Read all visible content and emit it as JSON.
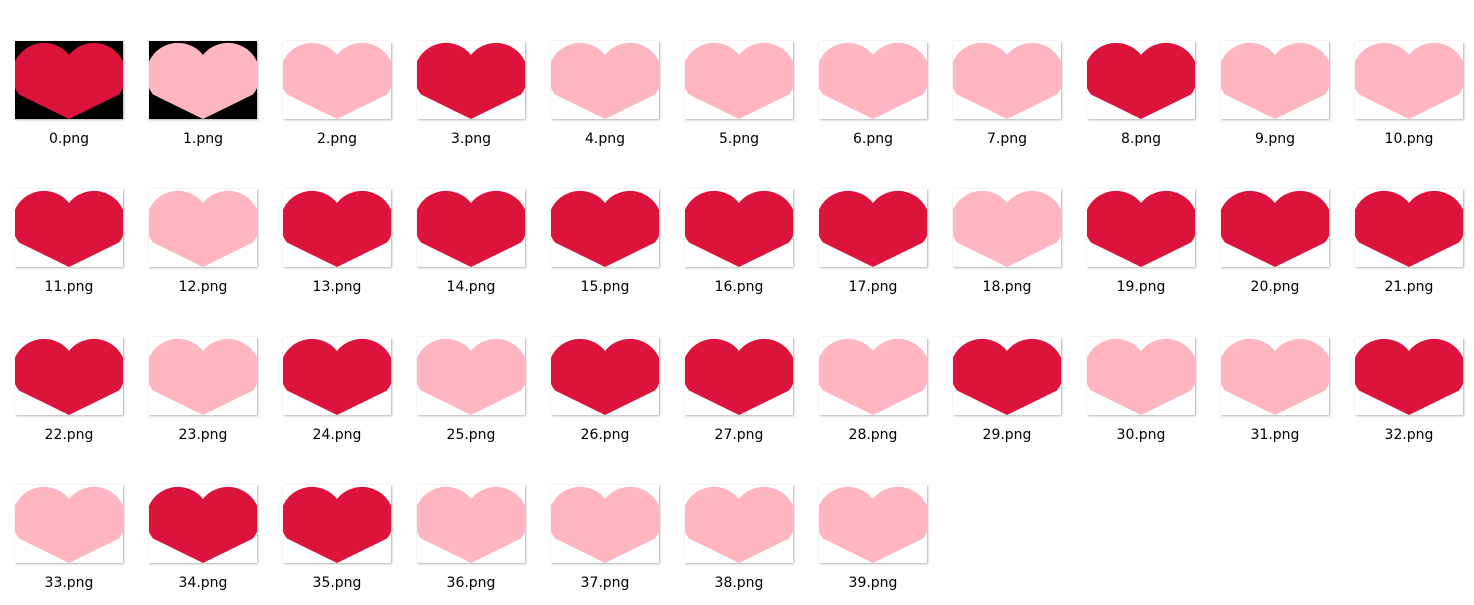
{
  "colors": {
    "dark_heart": "#DC143C",
    "light_heart": "#FFB6C1",
    "black_bg": "#000000",
    "white_bg": "#FFFFFF"
  },
  "files": [
    {
      "name": "0.png",
      "heart": "dark",
      "bg": "black"
    },
    {
      "name": "1.png",
      "heart": "light",
      "bg": "black"
    },
    {
      "name": "2.png",
      "heart": "light",
      "bg": "white"
    },
    {
      "name": "3.png",
      "heart": "dark",
      "bg": "white"
    },
    {
      "name": "4.png",
      "heart": "light",
      "bg": "white"
    },
    {
      "name": "5.png",
      "heart": "light",
      "bg": "white"
    },
    {
      "name": "6.png",
      "heart": "light",
      "bg": "white"
    },
    {
      "name": "7.png",
      "heart": "light",
      "bg": "white"
    },
    {
      "name": "8.png",
      "heart": "dark",
      "bg": "white"
    },
    {
      "name": "9.png",
      "heart": "light",
      "bg": "white"
    },
    {
      "name": "10.png",
      "heart": "light",
      "bg": "white"
    },
    {
      "name": "11.png",
      "heart": "dark",
      "bg": "white"
    },
    {
      "name": "12.png",
      "heart": "light",
      "bg": "white"
    },
    {
      "name": "13.png",
      "heart": "dark",
      "bg": "white"
    },
    {
      "name": "14.png",
      "heart": "dark",
      "bg": "white"
    },
    {
      "name": "15.png",
      "heart": "dark",
      "bg": "white"
    },
    {
      "name": "16.png",
      "heart": "dark",
      "bg": "white"
    },
    {
      "name": "17.png",
      "heart": "dark",
      "bg": "white"
    },
    {
      "name": "18.png",
      "heart": "light",
      "bg": "white"
    },
    {
      "name": "19.png",
      "heart": "dark",
      "bg": "white"
    },
    {
      "name": "20.png",
      "heart": "dark",
      "bg": "white"
    },
    {
      "name": "21.png",
      "heart": "dark",
      "bg": "white"
    },
    {
      "name": "22.png",
      "heart": "dark",
      "bg": "white"
    },
    {
      "name": "23.png",
      "heart": "light",
      "bg": "white"
    },
    {
      "name": "24.png",
      "heart": "dark",
      "bg": "white"
    },
    {
      "name": "25.png",
      "heart": "light",
      "bg": "white"
    },
    {
      "name": "26.png",
      "heart": "dark",
      "bg": "white"
    },
    {
      "name": "27.png",
      "heart": "dark",
      "bg": "white"
    },
    {
      "name": "28.png",
      "heart": "light",
      "bg": "white"
    },
    {
      "name": "29.png",
      "heart": "dark",
      "bg": "white"
    },
    {
      "name": "30.png",
      "heart": "light",
      "bg": "white"
    },
    {
      "name": "31.png",
      "heart": "light",
      "bg": "white"
    },
    {
      "name": "32.png",
      "heart": "dark",
      "bg": "white"
    },
    {
      "name": "33.png",
      "heart": "light",
      "bg": "white"
    },
    {
      "name": "34.png",
      "heart": "dark",
      "bg": "white"
    },
    {
      "name": "35.png",
      "heart": "dark",
      "bg": "white"
    },
    {
      "name": "36.png",
      "heart": "light",
      "bg": "white"
    },
    {
      "name": "37.png",
      "heart": "light",
      "bg": "white"
    },
    {
      "name": "38.png",
      "heart": "light",
      "bg": "white"
    },
    {
      "name": "39.png",
      "heart": "light",
      "bg": "white"
    }
  ]
}
